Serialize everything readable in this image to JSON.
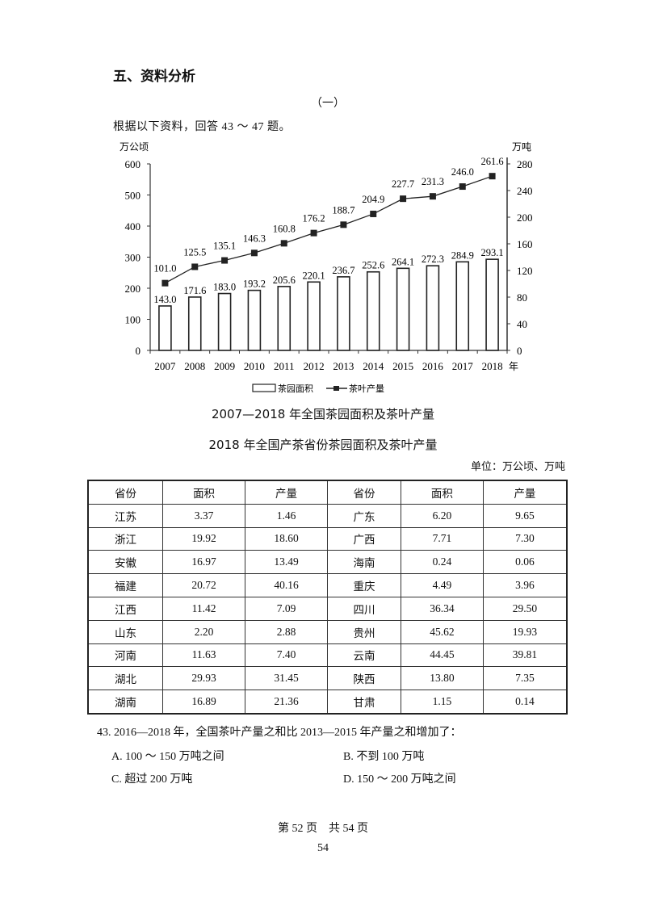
{
  "section": {
    "title": "五、资料分析",
    "sub_number": "（一）",
    "intro": "根据以下资料，回答 43 ～ 47 题。"
  },
  "chart_data": {
    "type": "bar+line",
    "title": "2007—2018 年全国茶园面积及茶叶产量",
    "categories": [
      "2007",
      "2008",
      "2009",
      "2010",
      "2011",
      "2012",
      "2013",
      "2014",
      "2015",
      "2016",
      "2017",
      "2018"
    ],
    "x_suffix": "年",
    "series": [
      {
        "name": "茶园面积",
        "type": "bar",
        "axis": "left",
        "values": [
          143.0,
          171.6,
          183.0,
          193.2,
          205.6,
          220.1,
          236.7,
          252.6,
          264.1,
          272.3,
          284.9,
          293.1
        ]
      },
      {
        "name": "茶叶产量",
        "type": "line",
        "axis": "right",
        "values": [
          101.0,
          125.5,
          135.1,
          146.3,
          160.8,
          176.2,
          188.7,
          204.9,
          227.7,
          231.3,
          246.0,
          261.6
        ]
      }
    ],
    "left_axis": {
      "label": "万公顷",
      "ticks": [
        0,
        100,
        200,
        300,
        400,
        500,
        600
      ],
      "ylim": [
        0,
        600
      ]
    },
    "right_axis": {
      "label": "万吨",
      "ticks": [
        0,
        40,
        80,
        120,
        160,
        200,
        240,
        280
      ],
      "ylim": [
        0,
        280
      ]
    },
    "legend": {
      "position": "bottom",
      "items": [
        "茶园面积",
        "茶叶产量"
      ]
    },
    "grid": false
  },
  "table": {
    "title": "2018 年全国产茶省份茶园面积及茶叶产量",
    "unit": "单位：万公顷、万吨",
    "headers": [
      "省份",
      "面积",
      "产量",
      "省份",
      "面积",
      "产量"
    ],
    "rows": [
      [
        "江苏",
        "3.37",
        "1.46",
        "广东",
        "6.20",
        "9.65"
      ],
      [
        "浙江",
        "19.92",
        "18.60",
        "广西",
        "7.71",
        "7.30"
      ],
      [
        "安徽",
        "16.97",
        "13.49",
        "海南",
        "0.24",
        "0.06"
      ],
      [
        "福建",
        "20.72",
        "40.16",
        "重庆",
        "4.49",
        "3.96"
      ],
      [
        "江西",
        "11.42",
        "7.09",
        "四川",
        "36.34",
        "29.50"
      ],
      [
        "山东",
        "2.20",
        "2.88",
        "贵州",
        "45.62",
        "19.93"
      ],
      [
        "河南",
        "11.63",
        "7.40",
        "云南",
        "44.45",
        "39.81"
      ],
      [
        "湖北",
        "29.93",
        "31.45",
        "陕西",
        "13.80",
        "7.35"
      ],
      [
        "湖南",
        "16.89",
        "21.36",
        "甘肃",
        "1.15",
        "0.14"
      ]
    ]
  },
  "question": {
    "stem": "43. 2016—2018 年，全国茶叶产量之和比 2013—2015 年产量之和增加了：",
    "options": {
      "A": "A. 100 ～ 150 万吨之间",
      "B": "B. 不到 100 万吨",
      "C": "C. 超过 200 万吨",
      "D": "D. 150 ～ 200 万吨之间"
    }
  },
  "footer": {
    "page_info": "第 52 页　共 54 页",
    "page_number": "54"
  }
}
